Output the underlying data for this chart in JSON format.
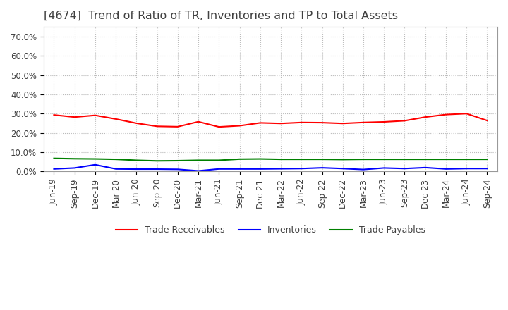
{
  "title": "[4674]  Trend of Ratio of TR, Inventories and TP to Total Assets",
  "x_labels": [
    "Jun-19",
    "Sep-19",
    "Dec-19",
    "Mar-20",
    "Jun-20",
    "Sep-20",
    "Dec-20",
    "Mar-21",
    "Jun-21",
    "Sep-21",
    "Dec-21",
    "Mar-22",
    "Jun-22",
    "Sep-22",
    "Dec-22",
    "Mar-23",
    "Jun-23",
    "Sep-23",
    "Dec-23",
    "Mar-24",
    "Jun-24",
    "Sep-24"
  ],
  "trade_receivables": [
    0.293,
    0.282,
    0.291,
    0.272,
    0.25,
    0.234,
    0.232,
    0.258,
    0.231,
    0.237,
    0.252,
    0.249,
    0.254,
    0.253,
    0.249,
    0.254,
    0.257,
    0.263,
    0.282,
    0.295,
    0.3,
    0.264
  ],
  "inventories": [
    0.013,
    0.018,
    0.035,
    0.013,
    0.012,
    0.012,
    0.011,
    0.003,
    0.013,
    0.013,
    0.013,
    0.014,
    0.015,
    0.019,
    0.015,
    0.01,
    0.018,
    0.015,
    0.02,
    0.013,
    0.015,
    0.015
  ],
  "trade_payables": [
    0.068,
    0.066,
    0.065,
    0.063,
    0.058,
    0.055,
    0.056,
    0.058,
    0.058,
    0.064,
    0.065,
    0.063,
    0.063,
    0.063,
    0.062,
    0.063,
    0.063,
    0.063,
    0.063,
    0.063,
    0.063,
    0.063
  ],
  "tr_color": "#ff0000",
  "inv_color": "#0000ff",
  "tp_color": "#008000",
  "legend_labels": [
    "Trade Receivables",
    "Inventories",
    "Trade Payables"
  ],
  "ylim": [
    0.0,
    0.75
  ],
  "yticks": [
    0.0,
    0.1,
    0.2,
    0.3,
    0.4,
    0.5,
    0.6,
    0.7
  ],
  "background_color": "#ffffff",
  "plot_bg_color": "#ffffff",
  "grid_color": "#bbbbbb",
  "title_color": "#404040",
  "title_fontsize": 11.5,
  "axis_fontsize": 8.5
}
